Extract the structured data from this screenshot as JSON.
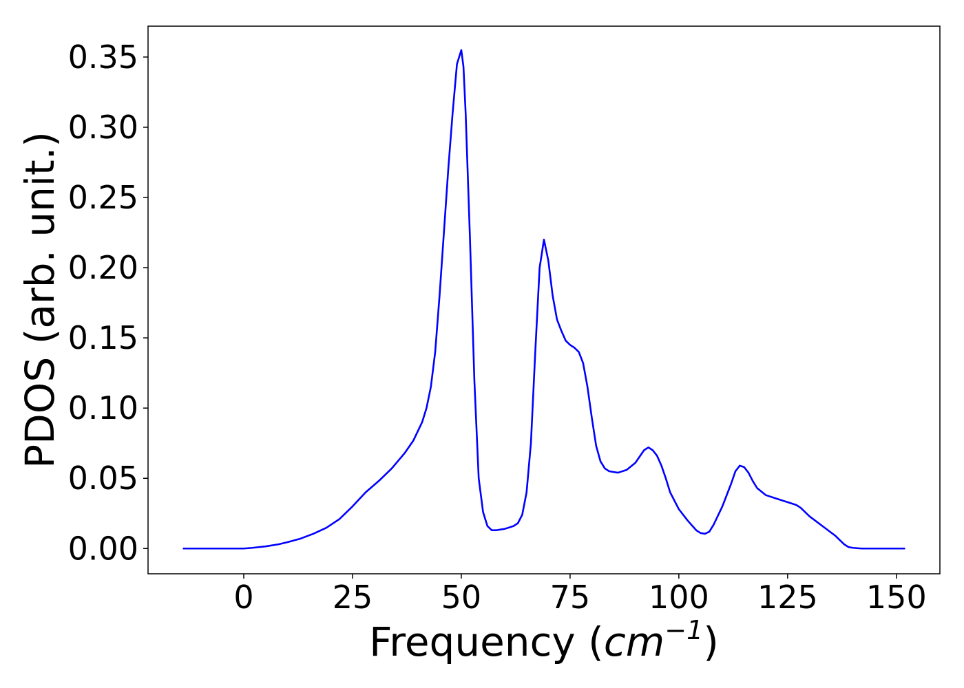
{
  "chart_data": {
    "type": "line",
    "title": "",
    "xlabel_main": "Frequency (",
    "xlabel_unit": "cm",
    "xlabel_exp": "−1",
    "xlabel_close": ")",
    "ylabel": "PDOS (arb. unit.)",
    "xlim": [
      -22,
      160
    ],
    "ylim": [
      -0.018,
      0.372
    ],
    "xticks": [
      0,
      25,
      50,
      75,
      100,
      125,
      150
    ],
    "xtick_labels": [
      "0",
      "25",
      "50",
      "75",
      "100",
      "125",
      "150"
    ],
    "yticks": [
      0.0,
      0.05,
      0.1,
      0.15,
      0.2,
      0.25,
      0.3,
      0.35
    ],
    "ytick_labels": [
      "0.00",
      "0.05",
      "0.10",
      "0.15",
      "0.20",
      "0.25",
      "0.30",
      "0.35"
    ],
    "grid": false,
    "series": [
      {
        "color": "#0000ff",
        "x": [
          -14,
          0,
          2,
          5,
          8,
          10,
          13,
          16,
          19,
          22,
          25,
          28,
          31,
          34,
          37,
          39,
          41,
          42,
          43,
          44,
          45,
          46,
          47,
          48,
          49,
          50,
          50.5,
          51,
          52,
          53,
          54,
          55,
          56,
          57,
          58,
          59,
          60,
          62,
          63,
          64,
          65,
          66,
          67,
          68,
          69,
          70,
          71,
          72,
          73,
          74,
          75,
          76,
          77,
          78,
          79,
          80,
          81,
          82,
          83,
          84,
          86,
          88,
          90,
          92,
          93,
          94,
          95,
          96,
          97,
          98,
          100,
          102,
          104,
          105,
          106,
          107,
          108,
          110,
          112,
          113,
          114,
          115,
          116,
          117,
          118,
          120,
          123,
          125,
          127,
          128,
          130,
          133,
          136,
          138,
          139,
          140,
          142,
          145,
          152
        ],
        "y": [
          0.0,
          0.0,
          0.0005,
          0.0015,
          0.003,
          0.0045,
          0.007,
          0.0105,
          0.0148,
          0.021,
          0.03,
          0.04,
          0.048,
          0.057,
          0.068,
          0.077,
          0.09,
          0.1,
          0.115,
          0.14,
          0.18,
          0.225,
          0.27,
          0.31,
          0.345,
          0.355,
          0.343,
          0.31,
          0.22,
          0.12,
          0.05,
          0.026,
          0.016,
          0.013,
          0.013,
          0.0135,
          0.014,
          0.016,
          0.018,
          0.024,
          0.04,
          0.075,
          0.14,
          0.2,
          0.22,
          0.205,
          0.18,
          0.163,
          0.155,
          0.148,
          0.145,
          0.143,
          0.14,
          0.132,
          0.115,
          0.093,
          0.073,
          0.062,
          0.057,
          0.055,
          0.054,
          0.056,
          0.061,
          0.07,
          0.072,
          0.07,
          0.066,
          0.059,
          0.05,
          0.04,
          0.028,
          0.02,
          0.013,
          0.011,
          0.0105,
          0.012,
          0.017,
          0.03,
          0.046,
          0.055,
          0.059,
          0.058,
          0.054,
          0.048,
          0.043,
          0.038,
          0.035,
          0.033,
          0.031,
          0.029,
          0.023,
          0.016,
          0.009,
          0.003,
          0.001,
          0.0005,
          0.0,
          0.0,
          0.0
        ]
      }
    ]
  }
}
